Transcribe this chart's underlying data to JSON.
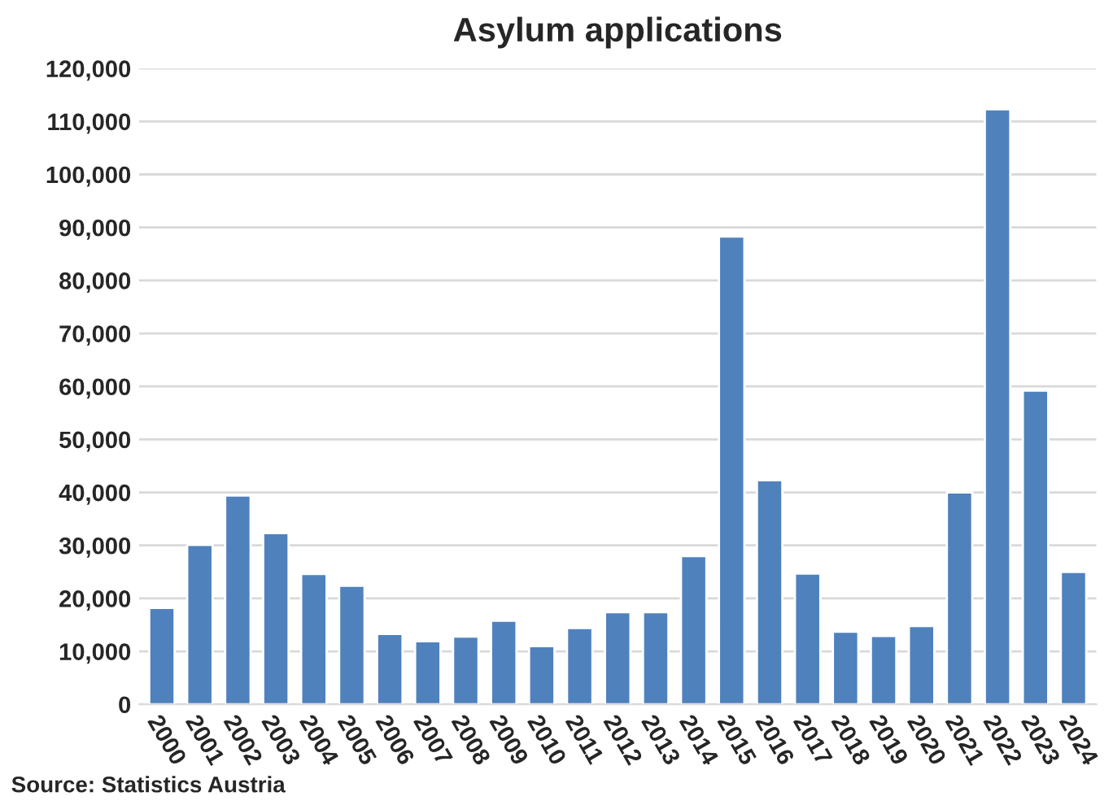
{
  "chart_data": {
    "type": "bar",
    "title": "Asylum applications",
    "categories": [
      "2000",
      "2001",
      "2002",
      "2003",
      "2004",
      "2005",
      "2006",
      "2007",
      "2008",
      "2009",
      "2010",
      "2011",
      "2012",
      "2013",
      "2014",
      "2015",
      "2016",
      "2017",
      "2018",
      "2019",
      "2020",
      "2021",
      "2022",
      "2023",
      "2024"
    ],
    "values": [
      18200,
      30100,
      39400,
      32300,
      24600,
      22400,
      13300,
      11900,
      12800,
      15800,
      11000,
      14400,
      17400,
      17400,
      28000,
      88300,
      42300,
      24700,
      13700,
      12900,
      14800,
      40000,
      112300,
      59200,
      25000
    ],
    "color": "#4f81bd",
    "ylim": [
      0,
      120000
    ],
    "yticks": [
      {
        "value": 0,
        "label": "0"
      },
      {
        "value": 10000,
        "label": "10,000"
      },
      {
        "value": 20000,
        "label": "20,000"
      },
      {
        "value": 30000,
        "label": "30,000"
      },
      {
        "value": 40000,
        "label": "40,000"
      },
      {
        "value": 50000,
        "label": "50,000"
      },
      {
        "value": 60000,
        "label": "60,000"
      },
      {
        "value": 70000,
        "label": "70,000"
      },
      {
        "value": 80000,
        "label": "80,000"
      },
      {
        "value": 90000,
        "label": "90,000"
      },
      {
        "value": 100000,
        "label": "100,000"
      },
      {
        "value": 110000,
        "label": "110,000"
      },
      {
        "value": 120000,
        "label": "120,000"
      }
    ],
    "grid": "y",
    "annotations": [
      "Source: Statistics Austria"
    ]
  }
}
